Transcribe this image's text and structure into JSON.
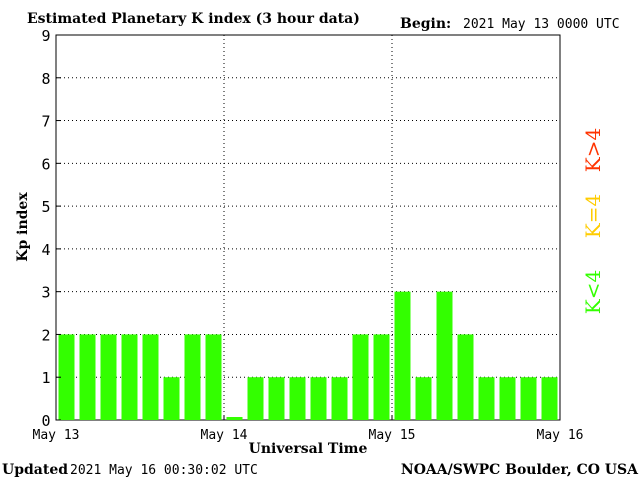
{
  "chart_data": {
    "type": "bar",
    "title": "Estimated Planetary K index (3 hour data)",
    "begin_label": "Begin:",
    "begin_value": "2021 May 13 0000 UTC",
    "xlabel": "Universal Time",
    "ylabel": "Kp index",
    "ylim": [
      0,
      9
    ],
    "yticks": [
      "0",
      "1",
      "2",
      "3",
      "4",
      "5",
      "6",
      "7",
      "8",
      "9"
    ],
    "xticks": [
      "May 13",
      "May 14",
      "May 15",
      "May 16"
    ],
    "grid": true,
    "values": [
      2,
      2,
      2,
      2,
      2,
      1,
      2,
      2,
      0.07,
      1,
      1,
      1,
      1,
      1,
      2,
      2,
      3,
      1,
      3,
      2,
      1,
      1,
      1,
      1
    ],
    "bar_color": "#33ff00",
    "legend": [
      {
        "label": "K<4",
        "color": "#33ff00"
      },
      {
        "label": "K=4",
        "color": "#ffcc00"
      },
      {
        "label": "K>4",
        "color": "#ff3300"
      }
    ]
  },
  "footer": {
    "updated_label": "Updated",
    "updated_value": "2021 May 16 00:30:02 UTC",
    "source": "NOAA/SWPC Boulder, CO USA"
  }
}
